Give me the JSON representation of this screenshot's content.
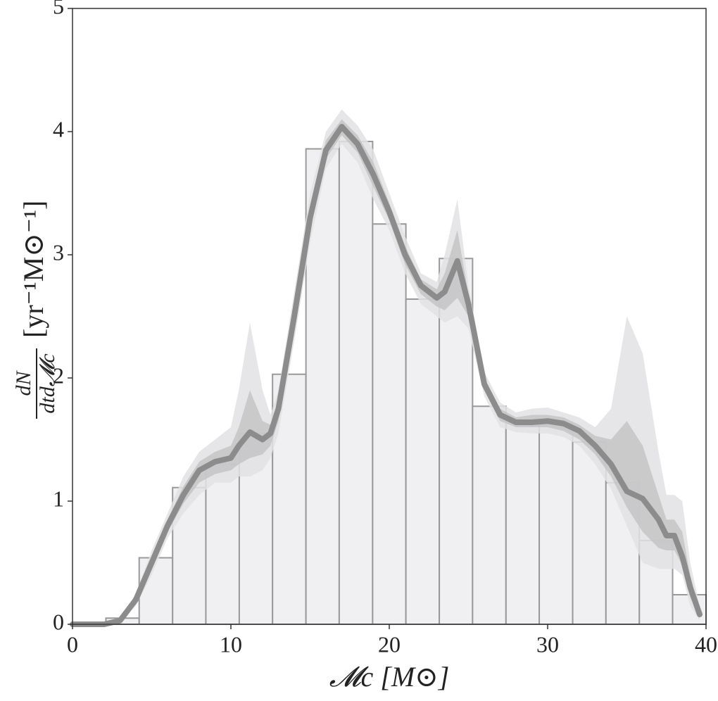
{
  "chart_data": {
    "type": "histogram",
    "bins": [
      0,
      2.11,
      4.21,
      6.32,
      8.42,
      10.53,
      12.63,
      14.74,
      16.84,
      18.95,
      21.05,
      23.16,
      25.26,
      27.37,
      29.47,
      31.58,
      33.68,
      35.79,
      37.89,
      40
    ],
    "values": [
      0,
      0.05,
      0.54,
      1.11,
      1.3,
      1.55,
      2.03,
      3.86,
      3.92,
      3.25,
      2.64,
      2.97,
      1.77,
      1.63,
      1.63,
      1.48,
      1.15,
      0.68,
      0.24
    ],
    "color": "#f0f0f2",
    "edge_color": "#999999",
    "curve": {
      "color": "#8c8c8c",
      "x": [
        0,
        2,
        3,
        4,
        5,
        6,
        7,
        8,
        9,
        10,
        10.5,
        11.2,
        12,
        12.5,
        13,
        14,
        15,
        16,
        17,
        18,
        19,
        20,
        21,
        22,
        23,
        23.5,
        24.3,
        25,
        26,
        27,
        28,
        29,
        30,
        31,
        32,
        33,
        34,
        35,
        36,
        37,
        37.5,
        38,
        38.5,
        39,
        39.6
      ],
      "values": [
        0,
        0,
        0.03,
        0.2,
        0.5,
        0.8,
        1.05,
        1.25,
        1.32,
        1.35,
        1.45,
        1.56,
        1.5,
        1.55,
        1.75,
        2.5,
        3.3,
        3.85,
        4.04,
        3.9,
        3.65,
        3.35,
        3.0,
        2.75,
        2.65,
        2.7,
        2.95,
        2.6,
        1.95,
        1.7,
        1.64,
        1.64,
        1.65,
        1.63,
        1.57,
        1.45,
        1.3,
        1.08,
        1.02,
        0.85,
        0.72,
        0.72,
        0.55,
        0.3,
        0.08
      ],
      "bands": [
        {
          "color": "#e2e2e4",
          "upper": [
            0,
            0,
            0.04,
            0.25,
            0.6,
            0.9,
            1.2,
            1.4,
            1.5,
            1.6,
            1.9,
            2.45,
            1.9,
            1.7,
            1.9,
            2.7,
            3.5,
            4.0,
            4.18,
            4.05,
            3.85,
            3.5,
            3.15,
            2.85,
            2.78,
            3.0,
            3.45,
            2.75,
            2.05,
            1.8,
            1.72,
            1.75,
            1.76,
            1.72,
            1.68,
            1.6,
            1.75,
            2.5,
            2.2,
            1.4,
            1.05,
            1.05,
            1.0,
            0.5,
            0.15
          ],
          "lower": [
            0,
            0,
            0.02,
            0.15,
            0.4,
            0.7,
            0.9,
            1.05,
            1.15,
            1.15,
            1.2,
            1.2,
            1.25,
            1.35,
            1.55,
            2.3,
            3.1,
            3.7,
            3.9,
            3.75,
            3.45,
            3.2,
            2.85,
            2.6,
            2.5,
            2.45,
            2.5,
            2.4,
            1.85,
            1.6,
            1.56,
            1.55,
            1.55,
            1.52,
            1.45,
            1.3,
            1.1,
            0.8,
            0.5,
            0.45,
            0.45,
            0.45,
            0.4,
            0.15,
            0.03
          ]
        },
        {
          "color": "#c4c4c6",
          "upper": [
            0,
            0,
            0.035,
            0.22,
            0.55,
            0.85,
            1.12,
            1.32,
            1.4,
            1.45,
            1.6,
            1.9,
            1.65,
            1.62,
            1.82,
            2.6,
            3.4,
            3.93,
            4.1,
            3.97,
            3.75,
            3.42,
            3.07,
            2.8,
            2.72,
            2.85,
            3.2,
            2.68,
            2.0,
            1.75,
            1.68,
            1.7,
            1.7,
            1.68,
            1.62,
            1.53,
            1.5,
            1.65,
            1.45,
            1.05,
            0.85,
            0.85,
            0.75,
            0.4,
            0.1
          ],
          "lower": [
            0,
            0,
            0.025,
            0.18,
            0.45,
            0.75,
            0.98,
            1.15,
            1.22,
            1.25,
            1.3,
            1.35,
            1.38,
            1.45,
            1.65,
            2.4,
            3.2,
            3.78,
            3.97,
            3.83,
            3.55,
            3.28,
            2.92,
            2.68,
            2.58,
            2.55,
            2.65,
            2.5,
            1.9,
            1.65,
            1.6,
            1.6,
            1.6,
            1.57,
            1.5,
            1.38,
            1.2,
            0.95,
            0.75,
            0.62,
            0.6,
            0.6,
            0.48,
            0.22,
            0.05
          ]
        }
      ]
    },
    "xlabel": "𝓜c [M⊙]",
    "ylabel": {
      "numerator": "dN",
      "denominator": "dtd𝓜c",
      "units": "[yr⁻¹M⊙⁻¹]"
    },
    "xlim": [
      0,
      40
    ],
    "ylim": [
      0,
      5
    ],
    "xticks": [
      0,
      10,
      20,
      30,
      40
    ],
    "yticks": [
      0,
      1,
      2,
      3,
      4,
      5
    ]
  }
}
